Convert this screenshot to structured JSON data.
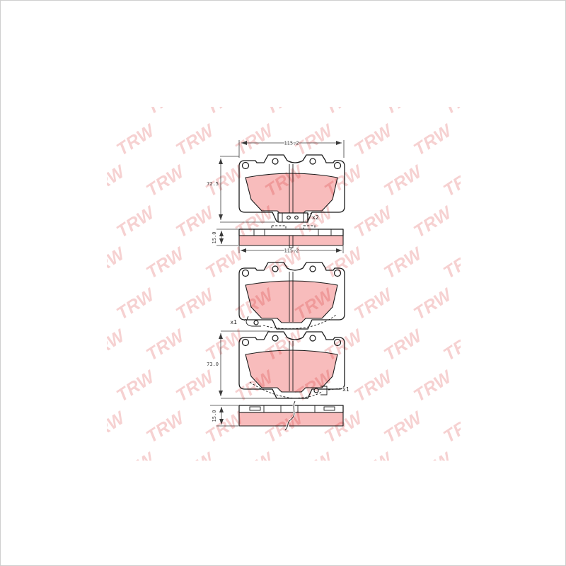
{
  "watermark": {
    "text": "TRW"
  },
  "colors": {
    "friction_pink": "#f8bcbc",
    "line": "#1b1b1b",
    "watermark_pink": "#e47070",
    "frame_gray": "#cfcfcf"
  },
  "drawing": {
    "outer_pad": {
      "width_dim": "115.2",
      "height_dim": "72.5",
      "quantity_label": "x2"
    },
    "side_view_top": {
      "thickness_dim": "15.0",
      "length_dim": "115.2"
    },
    "inner_pad_left_clip": {
      "quantity_label": "x1"
    },
    "inner_pad_right_clip": {
      "height_dim": "73.0",
      "quantity_label": "x1"
    },
    "side_view_bottom": {
      "thickness_dim": "15.0"
    }
  }
}
